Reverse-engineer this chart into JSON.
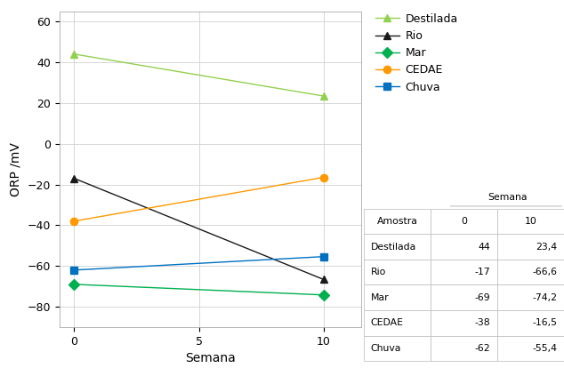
{
  "series": [
    {
      "label": "Destilada",
      "x": [
        0,
        10
      ],
      "y": [
        44,
        23.4
      ],
      "color": "#92d050",
      "marker": "^",
      "linestyle": "-"
    },
    {
      "label": "Rio",
      "x": [
        0,
        10
      ],
      "y": [
        -17,
        -66.6
      ],
      "color": "#1a1a1a",
      "marker": "^",
      "linestyle": "-"
    },
    {
      "label": "Mar",
      "x": [
        0,
        10
      ],
      "y": [
        -69,
        -74.2
      ],
      "color": "#00b050",
      "marker": "D",
      "linestyle": "-"
    },
    {
      "label": "CEDAE",
      "x": [
        0,
        10
      ],
      "y": [
        -38,
        -16.5
      ],
      "color": "#ff9900",
      "marker": "o",
      "linestyle": "-"
    },
    {
      "label": "Chuva",
      "x": [
        0,
        10
      ],
      "y": [
        -62,
        -55.4
      ],
      "color": "#0070c0",
      "marker": "s",
      "linestyle": "-"
    }
  ],
  "xlabel": "Semana",
  "ylabel": "ORP /mV",
  "xlim": [
    -0.6,
    11.5
  ],
  "ylim": [
    -90,
    65
  ],
  "xticks": [
    0,
    5,
    10
  ],
  "yticks": [
    -80,
    -60,
    -40,
    -20,
    0,
    20,
    40,
    60
  ],
  "table_data": {
    "header_col": "Amostra",
    "header_semana": "Semana",
    "col0": "0",
    "col10": "10",
    "rows": [
      [
        "Destilada",
        "44",
        "23,4"
      ],
      [
        "Rio",
        "-17",
        "-66,6"
      ],
      [
        "Mar",
        "-69",
        "-74,2"
      ],
      [
        "CEDAE",
        "-38",
        "-16,5"
      ],
      [
        "Chuva",
        "-62",
        "-55,4"
      ]
    ]
  },
  "background_color": "#ffffff",
  "grid_color": "#d0d0d0",
  "fig_width": 6.34,
  "fig_height": 4.23,
  "dpi": 100
}
